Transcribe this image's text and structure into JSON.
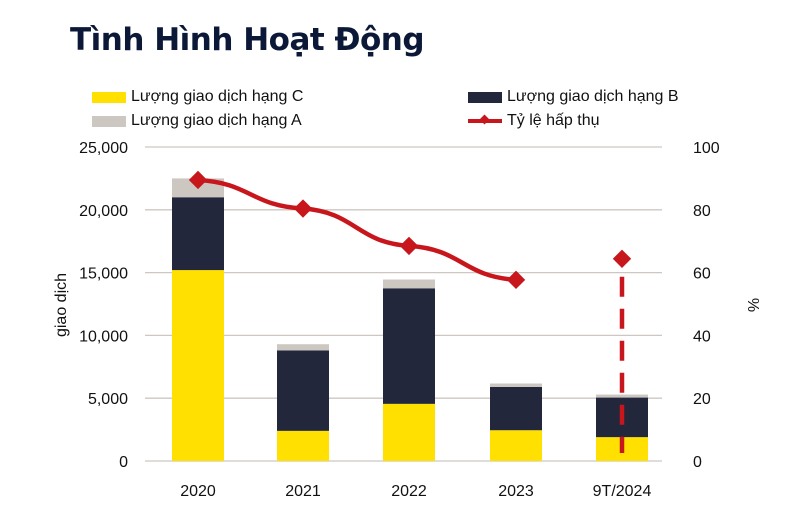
{
  "chart_data": {
    "type": "bar",
    "stacked": true,
    "title": "Tình Hình Hoạt Động",
    "categories": [
      "2020",
      "2021",
      "2022",
      "2023",
      "9T/2024"
    ],
    "series": [
      {
        "name": "Lượng giao dịch hạng C",
        "type": "bar",
        "axis": "left",
        "color": "#ffe000",
        "values": [
          15200,
          2400,
          4550,
          2450,
          1900
        ]
      },
      {
        "name": "Lượng giao dịch hạng B",
        "type": "bar",
        "axis": "left",
        "color": "#23273b",
        "values": [
          5800,
          6400,
          9200,
          3450,
          3150
        ]
      },
      {
        "name": "Lượng giao dịch hạng A",
        "type": "bar",
        "axis": "left",
        "color": "#cdc7c2",
        "values": [
          1500,
          500,
          700,
          270,
          240
        ]
      },
      {
        "name": "Tỷ lệ hấp thụ",
        "type": "line",
        "axis": "right",
        "color": "#c8161d",
        "values": [
          89.5,
          80.4,
          68.5,
          57.7,
          64.4
        ]
      }
    ],
    "ylabel": "giao dịch",
    "y2label": "%",
    "ylim": [
      0,
      25000
    ],
    "y2lim": [
      0,
      100
    ],
    "yticks": [
      "0",
      "5,000",
      "10,000",
      "15,000",
      "20,000",
      "25,000"
    ],
    "y2ticks": [
      "0",
      "20",
      "40",
      "60",
      "80",
      "100"
    ],
    "grid": true,
    "legend_position": "top"
  }
}
